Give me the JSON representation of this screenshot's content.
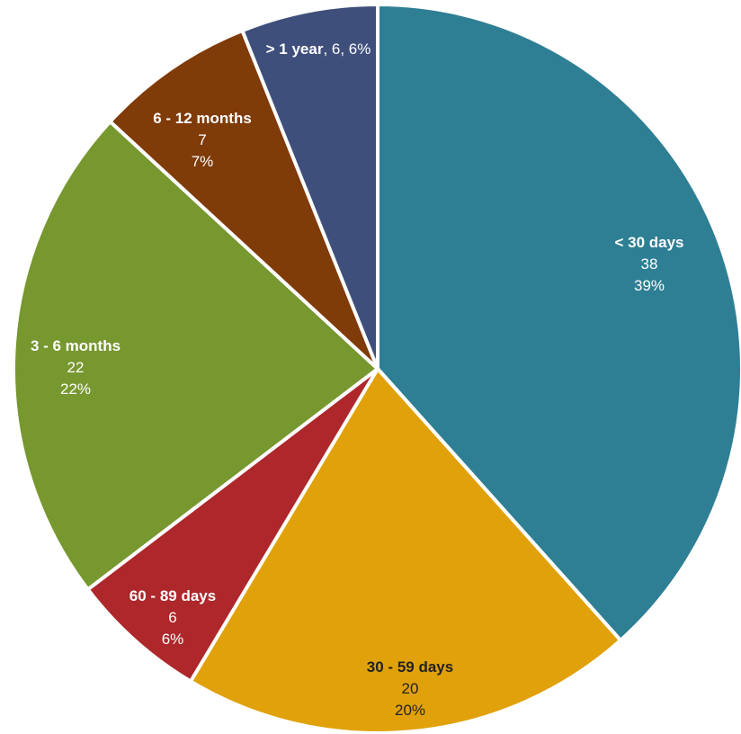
{
  "chart_data": {
    "type": "pie",
    "title": "",
    "slices": [
      {
        "label": "< 30 days",
        "value": 38,
        "percent": "39%",
        "value_text": "38",
        "color": "#2e7f93",
        "text_color": "#ffffff"
      },
      {
        "label": "30 - 59 days",
        "value": 20,
        "percent": "20%",
        "value_text": "20",
        "color": "#e0a10a",
        "text_color": "#222222"
      },
      {
        "label": "60 - 89 days",
        "value": 6,
        "percent": "6%",
        "value_text": "6",
        "color": "#ad272b",
        "text_color": "#ffffff"
      },
      {
        "label": "3 - 6 months",
        "value": 22,
        "percent": "22%",
        "value_text": "22",
        "color": "#77972f",
        "text_color": "#ffffff"
      },
      {
        "label": "6 - 12 months",
        "value": 7,
        "percent": "7%",
        "value_text": "7",
        "color": "#7f3b08",
        "text_color": "#ffffff"
      },
      {
        "label": "> 1 year",
        "value": 6,
        "percent": "6%",
        "value_text": "6",
        "color": "#3f4f7b",
        "text_color": "#ffffff"
      }
    ],
    "start_angle_deg": 0,
    "direction": "clockwise"
  }
}
